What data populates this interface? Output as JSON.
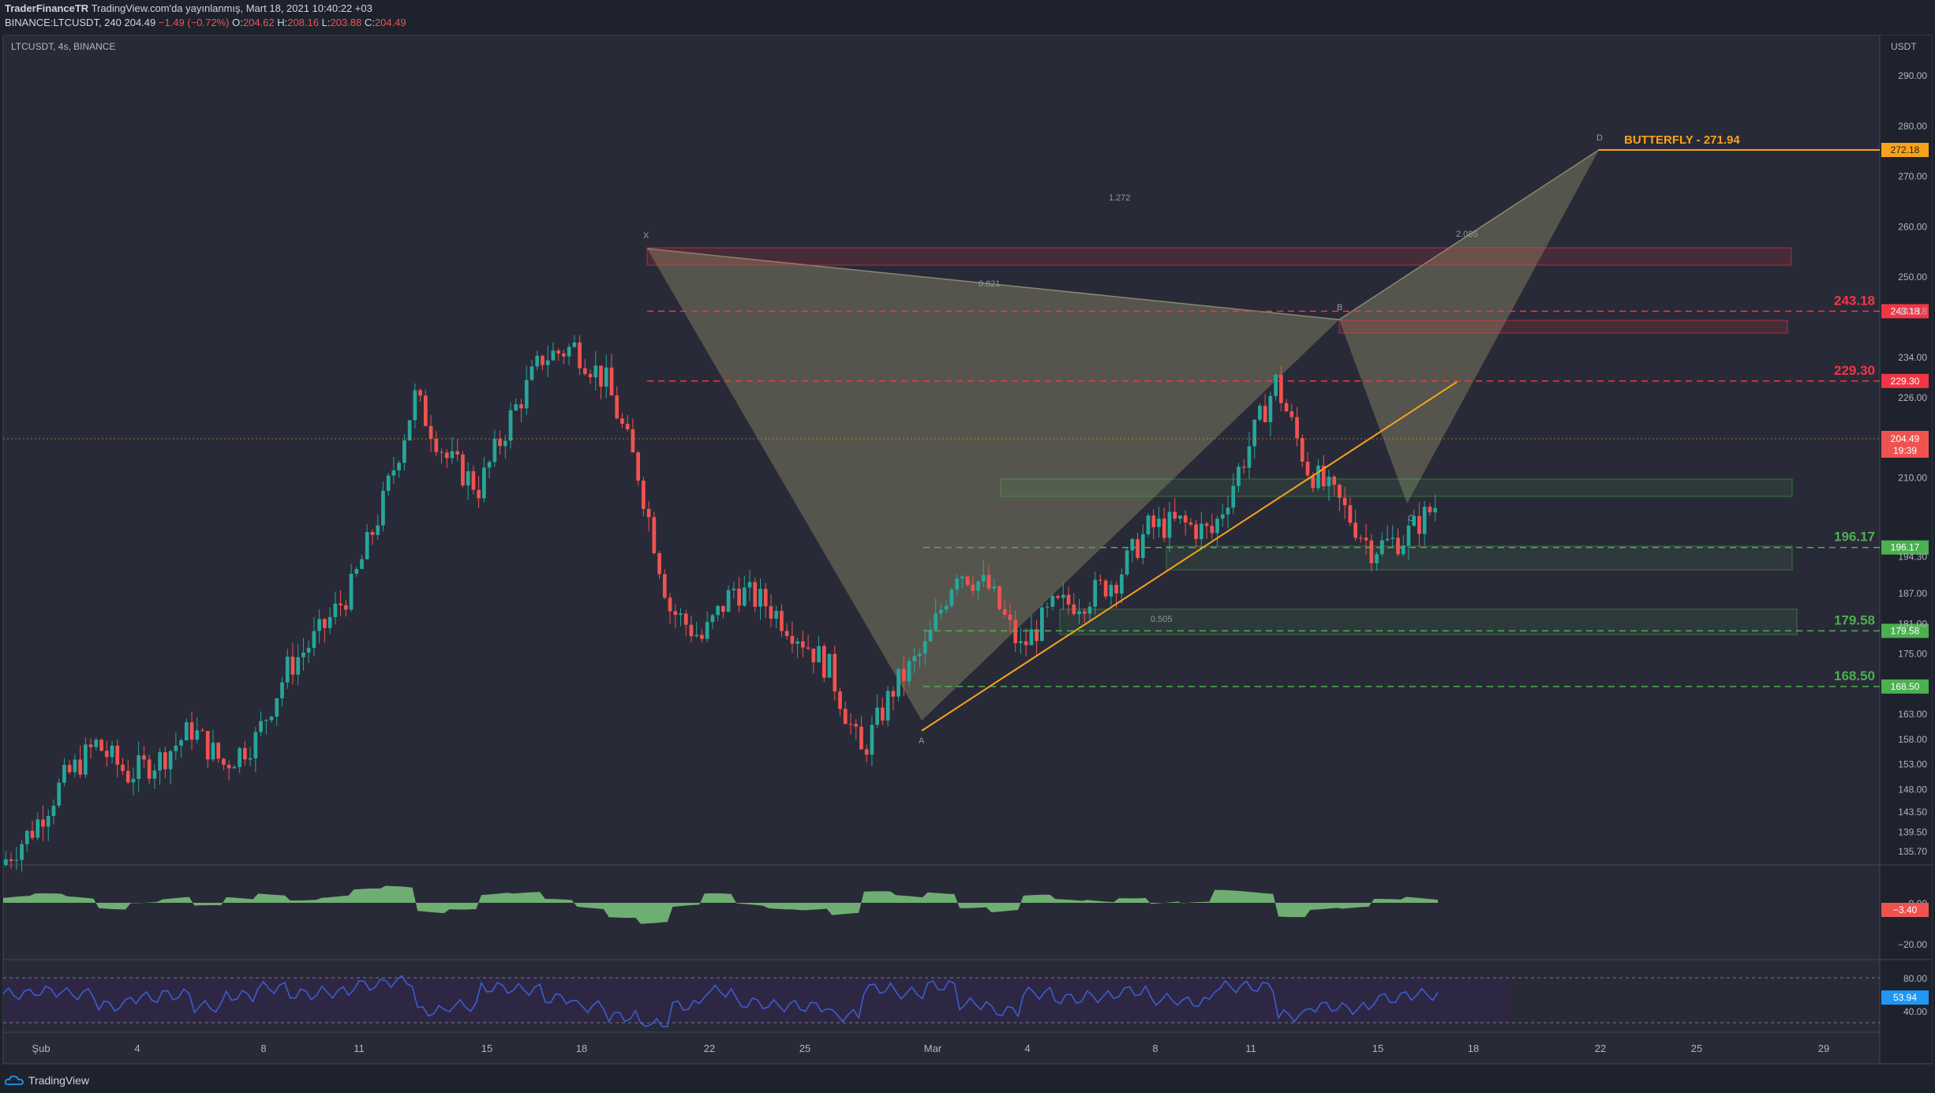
{
  "header": {
    "publisher": "TraderFinanceTR",
    "published_text": "TradingView.com'da yayınlanmış, Mart 18, 2021 10:40:22 +03",
    "symbol_line": "BINANCE:LTCUSDT, 240",
    "last": "204.49",
    "change": "−1.49 (−0.72%)",
    "o_label": "O:",
    "o": "204.62",
    "h_label": "H:",
    "h": "208.16",
    "l_label": "L:",
    "l": "203.88",
    "c_label": "C:",
    "c": "204.49"
  },
  "chart_title": "LTCUSDT, 4s, BINANCE",
  "currency": "USDT",
  "price_ticks": [
    "290.00",
    "280.00",
    "270.00",
    "260.00",
    "250.00",
    "243.18",
    "234.00",
    "226.00",
    "218.00",
    "210.00",
    "194.30",
    "187.00",
    "181.00",
    "175.00",
    "163.00",
    "158.00",
    "153.00",
    "148.00",
    "143.50",
    "139.50",
    "135.70"
  ],
  "osc_ticks": [
    "0.00",
    "−20.00"
  ],
  "rsi_ticks": [
    "80.00",
    "40.00"
  ],
  "x_ticks": [
    "Şub",
    "4",
    "8",
    "11",
    "15",
    "18",
    "22",
    "25",
    "Mar",
    "4",
    "8",
    "11",
    "15",
    "18",
    "22",
    "25",
    "29"
  ],
  "levels": [
    {
      "value": "243.18",
      "color": "#f23645"
    },
    {
      "value": "229.30",
      "color": "#f23645"
    },
    {
      "value": "196.17",
      "color": "#4caf50"
    },
    {
      "value": "179.58",
      "color": "#4caf50"
    },
    {
      "value": "168.50",
      "color": "#4caf50"
    }
  ],
  "price_badge": {
    "value": "204.49",
    "countdown": "19:39"
  },
  "target_badge": "272.18",
  "pattern": {
    "name": "BUTTERFLY - 271.94",
    "points": {
      "X": "X",
      "A": "A",
      "B": "B",
      "C": "C",
      "D": "D"
    },
    "ratios": {
      "xa_b": "0.821",
      "ab_c": "0.505",
      "bc_d": "2.085",
      "xa_d": "1.272"
    }
  },
  "osc_badge": "−3.40",
  "rsi_badge": "53.94",
  "footer_brand": "TradingView",
  "colors": {
    "up": "#26a69a",
    "down": "#ef5350",
    "pattern": "#7a7860",
    "trend": "#f7a21b",
    "rsi_line": "#3d5fd9",
    "rsi_bg": "#2e2744",
    "osc_pos": "#7bc67e",
    "osc_neg": "#f07a78"
  },
  "chart_data": {
    "type": "candlestick",
    "symbol": "LTCUSDT",
    "exchange": "BINANCE",
    "interval": "4s",
    "last_price": 204.49,
    "x_range": [
      "Şub 1",
      "Mar 29"
    ],
    "y_range": [
      133,
      296
    ],
    "horizontal_levels": [
      243.18,
      229.3,
      196.17,
      179.58,
      168.5
    ],
    "harmonic_points": [
      {
        "label": "X",
        "date": "Feb 19",
        "price": 244.5
      },
      {
        "label": "A",
        "date": "Feb 28",
        "price": 153.0
      },
      {
        "label": "B",
        "date": "Mar 13",
        "price": 230.0
      },
      {
        "label": "C",
        "date": "Mar 16",
        "price": 191.5
      },
      {
        "label": "D",
        "date": "Mar 20",
        "price": 272.18
      }
    ],
    "price_path": [
      {
        "d": "Feb 1",
        "p": 133
      },
      {
        "d": "Feb 2",
        "p": 140
      },
      {
        "d": "Feb 3",
        "p": 150
      },
      {
        "d": "Feb 4",
        "p": 157
      },
      {
        "d": "Feb 5",
        "p": 151
      },
      {
        "d": "Feb 6",
        "p": 154
      },
      {
        "d": "Feb 7",
        "p": 160
      },
      {
        "d": "Feb 8",
        "p": 153
      },
      {
        "d": "Feb 9",
        "p": 158
      },
      {
        "d": "Feb 10",
        "p": 172
      },
      {
        "d": "Feb 11",
        "p": 179
      },
      {
        "d": "Feb 12",
        "p": 188
      },
      {
        "d": "Feb 13",
        "p": 205
      },
      {
        "d": "Feb 14",
        "p": 226
      },
      {
        "d": "Feb 15",
        "p": 214
      },
      {
        "d": "Feb 16",
        "p": 208
      },
      {
        "d": "Feb 17",
        "p": 222
      },
      {
        "d": "Feb 18",
        "p": 234
      },
      {
        "d": "Feb 19",
        "p": 236
      },
      {
        "d": "Feb 20",
        "p": 229
      },
      {
        "d": "Feb 21",
        "p": 211
      },
      {
        "d": "Feb 22",
        "p": 184
      },
      {
        "d": "Feb 23",
        "p": 178
      },
      {
        "d": "Feb 24",
        "p": 188
      },
      {
        "d": "Feb 25",
        "p": 185
      },
      {
        "d": "Feb 26",
        "p": 179
      },
      {
        "d": "Feb 27",
        "p": 172
      },
      {
        "d": "Feb 28",
        "p": 155
      },
      {
        "d": "Mar 1",
        "p": 168
      },
      {
        "d": "Mar 2",
        "p": 176
      },
      {
        "d": "Mar 3",
        "p": 192
      },
      {
        "d": "Mar 4",
        "p": 188
      },
      {
        "d": "Mar 5",
        "p": 176
      },
      {
        "d": "Mar 6",
        "p": 184
      },
      {
        "d": "Mar 7",
        "p": 186
      },
      {
        "d": "Mar 8",
        "p": 190
      },
      {
        "d": "Mar 9",
        "p": 200
      },
      {
        "d": "Mar 10",
        "p": 201
      },
      {
        "d": "Mar 11",
        "p": 199
      },
      {
        "d": "Mar 12",
        "p": 214
      },
      {
        "d": "Mar 13",
        "p": 229
      },
      {
        "d": "Mar 14",
        "p": 212
      },
      {
        "d": "Mar 15",
        "p": 205
      },
      {
        "d": "Mar 16",
        "p": 196
      },
      {
        "d": "Mar 17",
        "p": 198
      },
      {
        "d": "Mar 18",
        "p": 204.49
      }
    ]
  }
}
